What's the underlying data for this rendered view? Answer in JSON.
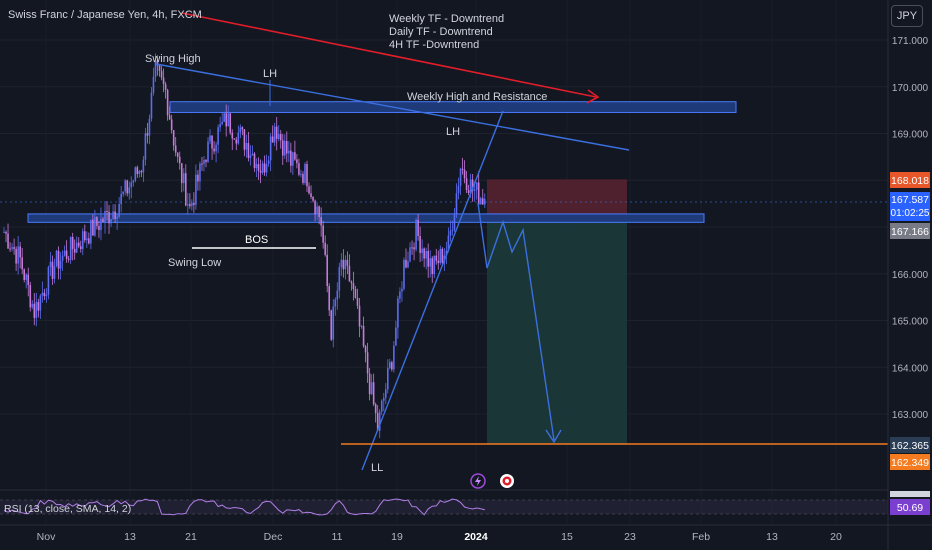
{
  "header": {
    "title": "Swiss Franc / Japanese Yen, 4h, FXCM",
    "currency_button": "JPY"
  },
  "annotations": {
    "trend_lines": [
      "Weekly TF - Downtrend",
      "Daily TF - Downtrend",
      "4H TF -Downtrend"
    ],
    "swing_high": "Swing High",
    "swing_low": "Swing Low",
    "lh_left": "LH",
    "lh_right": "LH",
    "ll": "LL",
    "bos": "BOS",
    "resistance": "Weekly High and Resistance"
  },
  "price_badges": {
    "current_price": "167.587",
    "countdown": "01:02:25",
    "entry": "167.166",
    "stop": "168.018",
    "target_1": "162.365",
    "target_2": "162.349"
  },
  "rsi": {
    "label": "RSI (13, close, SMA, 14, 2)",
    "value": "50.69"
  },
  "colors": {
    "background": "#131722",
    "up_candle": "#5b6cf0",
    "down_candle": "#c77ad8",
    "blue_line": "#3b6fe0",
    "red_arrow": "#e11d2a",
    "orange_line": "#f47b20",
    "stop_zone": "#5a2230",
    "target_zone": "#1c3a3a"
  },
  "chart_data": {
    "type": "candlestick",
    "ylim": [
      162,
      171.3
    ],
    "y_ticks": [
      {
        "label": "171.000",
        "value": 171
      },
      {
        "label": "170.000",
        "value": 170
      },
      {
        "label": "169.000",
        "value": 169
      },
      {
        "label": "166.000",
        "value": 166
      },
      {
        "label": "165.000",
        "value": 165
      },
      {
        "label": "164.000",
        "value": 164
      },
      {
        "label": "163.000",
        "value": 163
      }
    ],
    "x_ticks": [
      "Nov",
      "13",
      "21",
      "Dec",
      "11",
      "19",
      "2024",
      "15",
      "23",
      "Feb",
      "13",
      "20"
    ],
    "series_outline": [
      {
        "i": 0,
        "p": 166.9
      },
      {
        "i": 8,
        "p": 166.3
      },
      {
        "i": 15,
        "p": 165.2
      },
      {
        "i": 25,
        "p": 166.2
      },
      {
        "i": 40,
        "p": 166.8
      },
      {
        "i": 55,
        "p": 167.4
      },
      {
        "i": 68,
        "p": 168.3
      },
      {
        "i": 75,
        "p": 170.3
      },
      {
        "i": 80,
        "p": 169.9
      },
      {
        "i": 86,
        "p": 168.4
      },
      {
        "i": 92,
        "p": 167.4
      },
      {
        "i": 100,
        "p": 168.6
      },
      {
        "i": 110,
        "p": 169.3
      },
      {
        "i": 120,
        "p": 168.8
      },
      {
        "i": 128,
        "p": 168.2
      },
      {
        "i": 134,
        "p": 169.2
      },
      {
        "i": 142,
        "p": 168.4
      },
      {
        "i": 150,
        "p": 168.1
      },
      {
        "i": 157,
        "p": 167.1
      },
      {
        "i": 162,
        "p": 164.8
      },
      {
        "i": 167,
        "p": 166.2
      },
      {
        "i": 172,
        "p": 165.8
      },
      {
        "i": 180,
        "p": 163.9
      },
      {
        "i": 185,
        "p": 162.7
      },
      {
        "i": 192,
        "p": 164.2
      },
      {
        "i": 198,
        "p": 166.2
      },
      {
        "i": 204,
        "p": 166.9
      },
      {
        "i": 212,
        "p": 166.1
      },
      {
        "i": 220,
        "p": 166.6
      },
      {
        "i": 226,
        "p": 168.3
      },
      {
        "i": 232,
        "p": 167.8
      },
      {
        "i": 238,
        "p": 167.6
      }
    ],
    "resistance_zone": [
      169.45,
      169.68
    ],
    "support_zone": [
      167.1,
      167.28
    ],
    "bos_level": 166.55,
    "short_position": {
      "entry": 167.166,
      "stop": 168.018,
      "target": 162.349
    }
  }
}
